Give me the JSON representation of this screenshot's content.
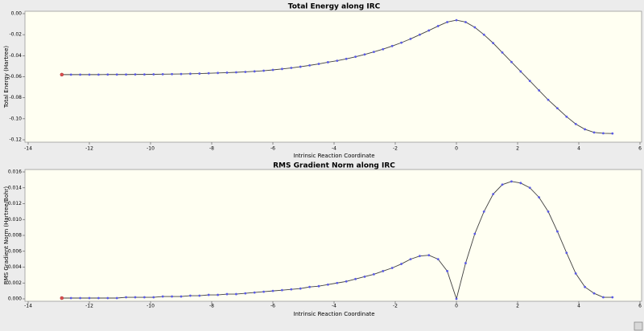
{
  "chart_data": [
    {
      "type": "line",
      "title": "Total Energy along IRC",
      "xlabel": "Intrinsic Reaction Coordinate",
      "ylabel": "Total Energy (Hartree)",
      "x": [
        -12.9,
        -12.6,
        -12.3,
        -12.0,
        -11.7,
        -11.4,
        -11.1,
        -10.8,
        -10.5,
        -10.2,
        -9.9,
        -9.6,
        -9.3,
        -9.0,
        -8.7,
        -8.4,
        -8.1,
        -7.8,
        -7.5,
        -7.2,
        -6.9,
        -6.6,
        -6.3,
        -6.0,
        -5.7,
        -5.4,
        -5.1,
        -4.8,
        -4.5,
        -4.2,
        -3.9,
        -3.6,
        -3.3,
        -3.0,
        -2.7,
        -2.4,
        -2.1,
        -1.8,
        -1.5,
        -1.2,
        -0.9,
        -0.6,
        -0.3,
        0.0,
        0.3,
        0.6,
        0.9,
        1.2,
        1.5,
        1.8,
        2.1,
        2.4,
        2.7,
        3.0,
        3.3,
        3.6,
        3.9,
        4.2,
        4.5,
        4.8,
        5.1
      ],
      "values": [
        -0.058,
        -0.058,
        -0.058,
        -0.058,
        -0.058,
        -0.0579,
        -0.0579,
        -0.0579,
        -0.0578,
        -0.0578,
        -0.0577,
        -0.0576,
        -0.0575,
        -0.0574,
        -0.0572,
        -0.057,
        -0.0567,
        -0.0564,
        -0.0561,
        -0.0558,
        -0.0554,
        -0.0549,
        -0.0543,
        -0.0535,
        -0.0526,
        -0.0516,
        -0.0505,
        -0.0492,
        -0.0478,
        -0.0462,
        -0.0448,
        -0.043,
        -0.041,
        -0.0388,
        -0.0364,
        -0.0338,
        -0.0308,
        -0.0276,
        -0.024,
        -0.02,
        -0.016,
        -0.0118,
        -0.008,
        -0.0062,
        -0.008,
        -0.013,
        -0.02,
        -0.028,
        -0.037,
        -0.046,
        -0.055,
        -0.064,
        -0.073,
        -0.082,
        -0.09,
        -0.098,
        -0.105,
        -0.11,
        -0.113,
        -0.1138,
        -0.114
      ],
      "xlim": [
        -14,
        6
      ],
      "xticks": [
        -14,
        -12,
        -10,
        -8,
        -6,
        -4,
        -2,
        0,
        2,
        4,
        6
      ],
      "ylim": [
        -0.12,
        0
      ],
      "yticks": [
        {
          "value": 0,
          "label": "0.00"
        },
        -0.02,
        -0.04,
        -0.06,
        -0.08,
        {
          "value": -0.1,
          "label": "-0.10"
        },
        -0.12
      ],
      "color": "#404040",
      "marker_color": "#5a5ae6",
      "start_marker_color": "#e05050"
    },
    {
      "type": "line",
      "title": "RMS Gradient Norm along IRC",
      "xlabel": "Intrinsic Reaction Coordinate",
      "ylabel": "RMS Gradient Norm (Hartree/Bohr)",
      "x": [
        -12.9,
        -12.6,
        -12.3,
        -12.0,
        -11.7,
        -11.4,
        -11.1,
        -10.8,
        -10.5,
        -10.2,
        -9.9,
        -9.6,
        -9.3,
        -9.0,
        -8.7,
        -8.4,
        -8.1,
        -7.8,
        -7.5,
        -7.2,
        -6.9,
        -6.6,
        -6.3,
        -6.0,
        -5.7,
        -5.4,
        -5.1,
        -4.8,
        -4.5,
        -4.2,
        -3.9,
        -3.6,
        -3.3,
        -3.0,
        -2.7,
        -2.4,
        -2.1,
        -1.8,
        -1.5,
        -1.2,
        -0.9,
        -0.6,
        -0.3,
        0.0,
        0.3,
        0.6,
        0.9,
        1.2,
        1.5,
        1.8,
        2.1,
        2.4,
        2.7,
        3.0,
        3.3,
        3.6,
        3.9,
        4.2,
        4.5,
        4.8,
        5.1
      ],
      "values": [
        0.0001,
        0.0001,
        0.0001,
        0.0001,
        0.0001,
        0.0001,
        0.0001,
        0.0002,
        0.0002,
        0.0002,
        0.0002,
        0.0003,
        0.0003,
        0.0003,
        0.0004,
        0.0004,
        0.0005,
        0.0005,
        0.0006,
        0.0006,
        0.0007,
        0.0008,
        0.0009,
        0.001,
        0.0011,
        0.0012,
        0.0013,
        0.0015,
        0.0016,
        0.0018,
        0.002,
        0.0022,
        0.0025,
        0.0028,
        0.0031,
        0.0035,
        0.0039,
        0.0044,
        0.005,
        0.0054,
        0.0055,
        0.005,
        0.0035,
        0.0,
        0.0045,
        0.0082,
        0.011,
        0.0132,
        0.0144,
        0.0148,
        0.0146,
        0.014,
        0.0128,
        0.011,
        0.0085,
        0.0058,
        0.0032,
        0.0015,
        0.0007,
        0.0002,
        0.0002
      ],
      "xlim": [
        -14,
        6
      ],
      "xticks": [
        -14,
        -12,
        -10,
        -8,
        -6,
        -4,
        -2,
        0,
        2,
        4,
        6
      ],
      "ylim": [
        0,
        0.016
      ],
      "yticks": [
        0.016,
        0.014,
        0.012,
        {
          "value": 0.01,
          "label": "0.010"
        },
        0.008,
        0.006,
        0.004,
        0.002,
        {
          "value": 0,
          "label": "0.000"
        }
      ],
      "color": "#404040",
      "marker_color": "#5a5ae6",
      "start_marker_color": "#e05050"
    }
  ]
}
